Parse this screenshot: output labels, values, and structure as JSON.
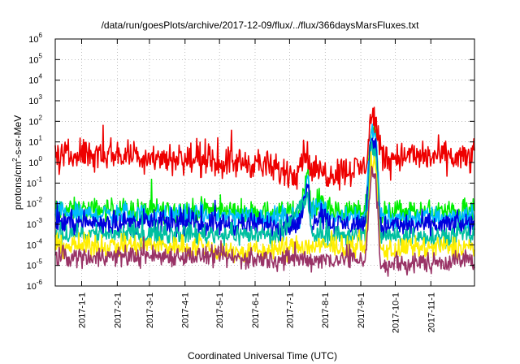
{
  "chart_data": {
    "type": "line",
    "title": "/data/run/goesPlots/archive/2017-12-09/flux/../flux/366daysMarsFluxes.txt",
    "xlabel": "Coordinated Universal Time (UTC)",
    "ylabel_parts": [
      "protons/cm",
      "2",
      "-s-sr-MeV"
    ],
    "y_scale": "log",
    "ylim": [
      1e-06,
      1000000.0
    ],
    "xlim": [
      "2016-12-09",
      "2017-12-09"
    ],
    "grid": true,
    "legend": "none",
    "x_ticks": [
      {
        "date": "2017-01-01",
        "label": "2017-1-1"
      },
      {
        "date": "2017-02-01",
        "label": "2017-2-1"
      },
      {
        "date": "2017-03-01",
        "label": "2017-3-1"
      },
      {
        "date": "2017-04-01",
        "label": "2017-4-1"
      },
      {
        "date": "2017-05-01",
        "label": "2017-5-1"
      },
      {
        "date": "2017-06-01",
        "label": "2017-6-1"
      },
      {
        "date": "2017-07-01",
        "label": "2017-7-1"
      },
      {
        "date": "2017-08-01",
        "label": "2017-8-1"
      },
      {
        "date": "2017-09-01",
        "label": "2017-9-1"
      },
      {
        "date": "2017-10-01",
        "label": "2017-10-1"
      },
      {
        "date": "2017-11-01",
        "label": "2017-11-1"
      }
    ],
    "y_ticks": [
      {
        "value": 1e-06,
        "base": "10",
        "exp": "-6"
      },
      {
        "value": 1e-05,
        "base": "10",
        "exp": "-5"
      },
      {
        "value": 0.0001,
        "base": "10",
        "exp": "-4"
      },
      {
        "value": 0.001,
        "base": "10",
        "exp": "-3"
      },
      {
        "value": 0.01,
        "base": "10",
        "exp": "-2"
      },
      {
        "value": 0.1,
        "base": "10",
        "exp": "-1"
      },
      {
        "value": 1,
        "base": "10",
        "exp": "0"
      },
      {
        "value": 10,
        "base": "10",
        "exp": "1"
      },
      {
        "value": 100,
        "base": "10",
        "exp": "2"
      },
      {
        "value": 1000,
        "base": "10",
        "exp": "3"
      },
      {
        "value": 10000,
        "base": "10",
        "exp": "4"
      },
      {
        "value": 100000,
        "base": "10",
        "exp": "5"
      },
      {
        "value": 1000000,
        "base": "10",
        "exp": "6"
      }
    ],
    "series": [
      {
        "color": "#00ee00",
        "baseline": 0.005,
        "noise": 0.55,
        "points": [
          [
            "2016-12-09",
            0.005
          ],
          [
            "2017-02-01",
            0.005
          ],
          [
            "2017-05-01",
            0.0045
          ],
          [
            "2017-06-20",
            0.0035
          ],
          [
            "2017-07-10",
            0.004
          ],
          [
            "2017-07-17",
            0.5
          ],
          [
            "2017-07-20",
            0.004
          ],
          [
            "2017-07-28",
            0.02
          ],
          [
            "2017-08-05",
            0.004
          ],
          [
            "2017-09-05",
            0.004
          ],
          [
            "2017-09-10",
            50
          ],
          [
            "2017-09-14",
            30
          ],
          [
            "2017-09-18",
            0.003
          ],
          [
            "2017-10-01",
            0.004
          ],
          [
            "2017-12-09",
            0.004
          ]
        ]
      },
      {
        "color": "#00bbff",
        "baseline": 0.003,
        "noise": 0.5,
        "points": [
          [
            "2016-12-09",
            0.003
          ],
          [
            "2017-03-01",
            0.003
          ],
          [
            "2017-06-20",
            0.0022
          ],
          [
            "2017-07-10",
            0.0025
          ],
          [
            "2017-07-17",
            0.2
          ],
          [
            "2017-07-20",
            0.0025
          ],
          [
            "2017-07-28",
            0.01
          ],
          [
            "2017-08-05",
            0.0025
          ],
          [
            "2017-09-05",
            0.0025
          ],
          [
            "2017-09-10",
            30
          ],
          [
            "2017-09-14",
            20
          ],
          [
            "2017-09-18",
            0.002
          ],
          [
            "2017-12-09",
            0.0025
          ]
        ]
      },
      {
        "color": "#0000dd",
        "baseline": 0.0012,
        "noise": 0.55,
        "points": [
          [
            "2016-12-09",
            0.0012
          ],
          [
            "2017-03-01",
            0.0012
          ],
          [
            "2017-06-20",
            0.0009
          ],
          [
            "2017-07-10",
            0.001
          ],
          [
            "2017-07-17",
            0.1
          ],
          [
            "2017-07-20",
            0.001
          ],
          [
            "2017-07-28",
            0.004
          ],
          [
            "2017-08-05",
            0.001
          ],
          [
            "2017-09-05",
            0.001
          ],
          [
            "2017-09-10",
            15
          ],
          [
            "2017-09-14",
            10
          ],
          [
            "2017-09-18",
            0.0008
          ],
          [
            "2017-12-09",
            0.001
          ]
        ]
      },
      {
        "color": "#00c0a0",
        "baseline": 0.00035,
        "noise": 0.5,
        "points": [
          [
            "2016-12-09",
            0.00035
          ],
          [
            "2017-04-01",
            0.00035
          ],
          [
            "2017-06-20",
            0.0003
          ],
          [
            "2017-07-17",
            0.02
          ],
          [
            "2017-07-20",
            0.0003
          ],
          [
            "2017-09-05",
            0.0003
          ],
          [
            "2017-09-10",
            5
          ],
          [
            "2017-09-14",
            3
          ],
          [
            "2017-09-18",
            0.00025
          ],
          [
            "2017-12-09",
            0.0003
          ]
        ]
      },
      {
        "color": "#ffee00",
        "baseline": 9e-05,
        "noise": 0.55,
        "points": [
          [
            "2016-12-09",
            9e-05
          ],
          [
            "2017-04-01",
            9e-05
          ],
          [
            "2017-05-20",
            4e-05
          ],
          [
            "2017-06-10",
            5e-05
          ],
          [
            "2017-07-01",
            8e-05
          ],
          [
            "2017-09-05",
            8e-05
          ],
          [
            "2017-09-10",
            1
          ],
          [
            "2017-09-14",
            0.5
          ],
          [
            "2017-09-18",
            6e-05
          ],
          [
            "2017-12-09",
            8e-05
          ]
        ]
      },
      {
        "color": "#993366",
        "baseline": 2.5e-05,
        "noise": 0.5,
        "points": [
          [
            "2016-12-09",
            2.5e-05
          ],
          [
            "2017-04-01",
            3e-05
          ],
          [
            "2017-06-01",
            2e-05
          ],
          [
            "2017-09-05",
            2e-05
          ],
          [
            "2017-09-10",
            0.3
          ],
          [
            "2017-09-14",
            0.2
          ],
          [
            "2017-09-18",
            1e-05
          ],
          [
            "2017-12-09",
            2e-05
          ]
        ]
      },
      {
        "color": "#ee0000",
        "baseline": 2,
        "noise": 0.75,
        "points": [
          [
            "2016-12-09",
            1.5
          ],
          [
            "2017-01-01",
            3
          ],
          [
            "2017-02-01",
            2.5
          ],
          [
            "2017-03-01",
            2
          ],
          [
            "2017-04-01",
            1.5
          ],
          [
            "2017-05-01",
            1
          ],
          [
            "2017-06-01",
            1
          ],
          [
            "2017-06-20",
            0.4
          ],
          [
            "2017-07-05",
            0.3
          ],
          [
            "2017-07-16",
            5
          ],
          [
            "2017-07-18",
            0.5
          ],
          [
            "2017-08-01",
            0.3
          ],
          [
            "2017-08-20",
            0.4
          ],
          [
            "2017-09-05",
            0.6
          ],
          [
            "2017-09-10",
            200
          ],
          [
            "2017-09-14",
            100
          ],
          [
            "2017-09-17",
            10
          ],
          [
            "2017-09-22",
            1.5
          ],
          [
            "2017-10-01",
            2
          ],
          [
            "2017-11-01",
            2
          ],
          [
            "2017-12-09",
            1.5
          ]
        ]
      }
    ]
  }
}
